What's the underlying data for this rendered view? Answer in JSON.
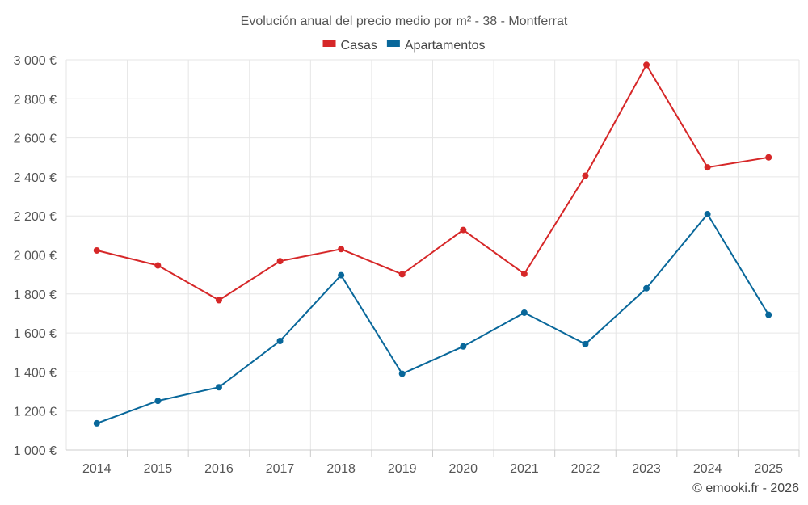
{
  "chart_data": {
    "type": "line",
    "title": "Evolución anual del precio medio por m² - 38 - Montferrat",
    "categories": [
      "2014",
      "2015",
      "2016",
      "2017",
      "2018",
      "2019",
      "2020",
      "2021",
      "2022",
      "2023",
      "2024",
      "2025"
    ],
    "series": [
      {
        "name": "Casas",
        "color": "#d62728",
        "values": [
          2023,
          1946,
          1768,
          1968,
          2030,
          1901,
          2128,
          1903,
          2406,
          2974,
          2449,
          2500
        ]
      },
      {
        "name": "Apartamentos",
        "color": "#08679a",
        "values": [
          1137,
          1252,
          1322,
          1559,
          1896,
          1391,
          1531,
          1704,
          1543,
          1829,
          2209,
          1693
        ]
      }
    ],
    "ylim": [
      1000,
      3000
    ],
    "y_ticks": [
      1000,
      1200,
      1400,
      1600,
      1800,
      2000,
      2200,
      2400,
      2600,
      2800,
      3000
    ],
    "y_tick_labels": [
      "1 000 €",
      "1 200 €",
      "1 400 €",
      "1 600 €",
      "1 800 €",
      "2 000 €",
      "2 200 €",
      "2 400 €",
      "2 600 €",
      "2 800 €",
      "3 000 €"
    ],
    "xlabel": "",
    "ylabel": "",
    "grid": true,
    "legend_position": "top-center"
  },
  "credit": "© emooki.fr - 2026"
}
